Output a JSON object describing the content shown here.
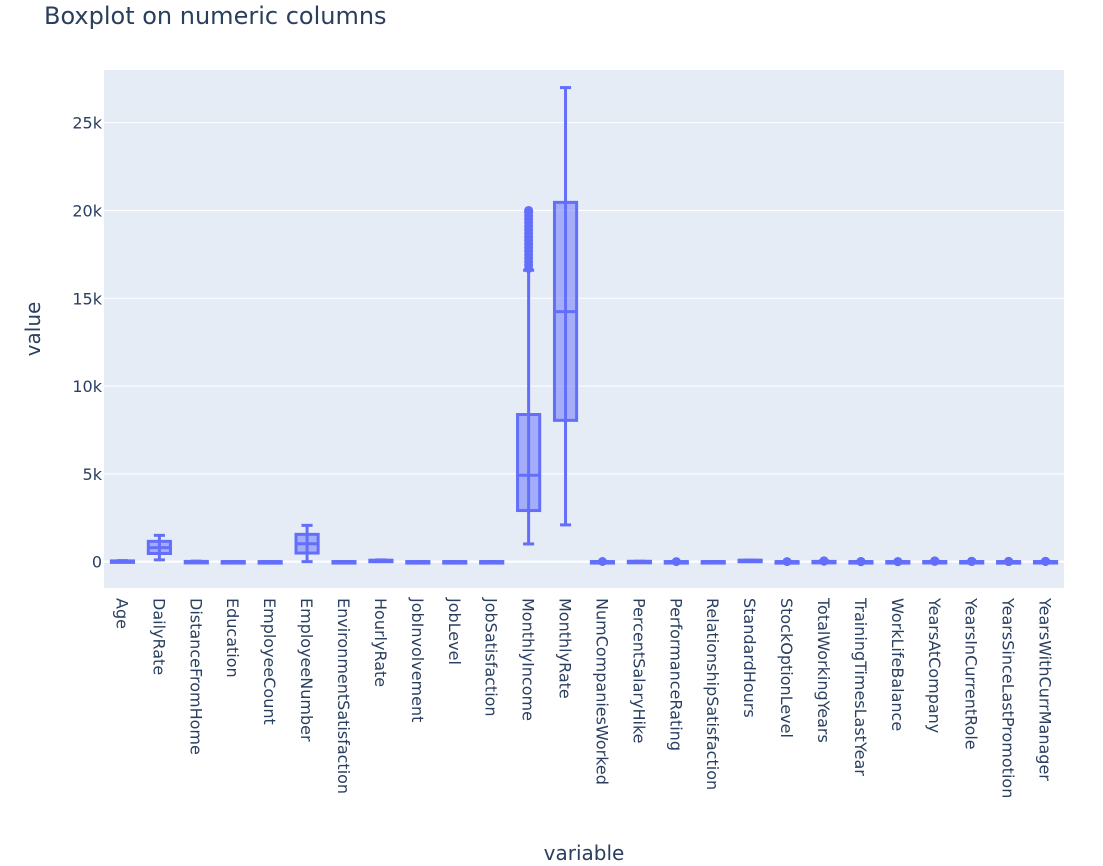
{
  "chart_data": {
    "type": "box",
    "title": "Boxplot on numeric columns",
    "xlabel": "variable",
    "ylabel": "value",
    "ylim": [
      -1500,
      28000
    ],
    "yticks": [
      {
        "value": 0,
        "label": "0"
      },
      {
        "value": 5000,
        "label": "5k"
      },
      {
        "value": 10000,
        "label": "10k"
      },
      {
        "value": 15000,
        "label": "15k"
      },
      {
        "value": 20000,
        "label": "20k"
      },
      {
        "value": 25000,
        "label": "25k"
      }
    ],
    "grid": true,
    "colors": {
      "plot_bg": "#e5ecf6",
      "box_line": "#636efa",
      "box_fill": "rgba(99,110,250,0.5)",
      "grid": "#ffffff",
      "text": "#2a3f5f"
    },
    "categories": [
      "Age",
      "DailyRate",
      "DistanceFromHome",
      "Education",
      "EmployeeCount",
      "EmployeeNumber",
      "EnvironmentSatisfaction",
      "HourlyRate",
      "JobInvolvement",
      "JobLevel",
      "JobSatisfaction",
      "MonthlyIncome",
      "MonthlyRate",
      "NumCompaniesWorked",
      "PercentSalaryHike",
      "PerformanceRating",
      "RelationshipSatisfaction",
      "StandardHours",
      "StockOptionLevel",
      "TotalWorkingYears",
      "TrainingTimesLastYear",
      "WorkLifeBalance",
      "YearsAtCompany",
      "YearsInCurrentRole",
      "YearsSinceLastPromotion",
      "YearsWithCurrManager"
    ],
    "boxes": [
      {
        "min": 18,
        "q1": 30,
        "median": 36,
        "q3": 43,
        "max": 60,
        "outliers": []
      },
      {
        "min": 102,
        "q1": 465,
        "median": 802,
        "q3": 1157,
        "max": 1499,
        "outliers": []
      },
      {
        "min": 1,
        "q1": 2,
        "median": 7,
        "q3": 14,
        "max": 29,
        "outliers": []
      },
      {
        "min": 1,
        "q1": 2,
        "median": 3,
        "q3": 4,
        "max": 5,
        "outliers": []
      },
      {
        "min": 1,
        "q1": 1,
        "median": 1,
        "q3": 1,
        "max": 1,
        "outliers": []
      },
      {
        "min": 1,
        "q1": 491,
        "median": 1020,
        "q3": 1556,
        "max": 2068,
        "outliers": []
      },
      {
        "min": 1,
        "q1": 2,
        "median": 3,
        "q3": 4,
        "max": 4,
        "outliers": []
      },
      {
        "min": 30,
        "q1": 48,
        "median": 66,
        "q3": 84,
        "max": 100,
        "outliers": []
      },
      {
        "min": 1,
        "q1": 2,
        "median": 3,
        "q3": 3,
        "max": 4,
        "outliers": []
      },
      {
        "min": 1,
        "q1": 1,
        "median": 2,
        "q3": 3,
        "max": 5,
        "outliers": []
      },
      {
        "min": 1,
        "q1": 2,
        "median": 3,
        "q3": 4,
        "max": 4,
        "outliers": []
      },
      {
        "min": 1009,
        "q1": 2911,
        "median": 4919,
        "q3": 8379,
        "max": 16595,
        "outliers": [
          16700,
          16900,
          17100,
          17300,
          17500,
          17700,
          17900,
          18100,
          18300,
          18500,
          18700,
          18900,
          19100,
          19300,
          19500,
          19700,
          19900,
          20000
        ]
      },
      {
        "min": 2094,
        "q1": 8047,
        "median": 14236,
        "q3": 20462,
        "max": 26999,
        "outliers": []
      },
      {
        "min": 0,
        "q1": 1,
        "median": 2,
        "q3": 4,
        "max": 8,
        "outliers": [
          9
        ]
      },
      {
        "min": 11,
        "q1": 12,
        "median": 14,
        "q3": 18,
        "max": 25,
        "outliers": []
      },
      {
        "min": 3,
        "q1": 3,
        "median": 3,
        "q3": 3,
        "max": 3,
        "outliers": [
          4
        ]
      },
      {
        "min": 1,
        "q1": 2,
        "median": 3,
        "q3": 4,
        "max": 4,
        "outliers": []
      },
      {
        "min": 80,
        "q1": 80,
        "median": 80,
        "q3": 80,
        "max": 80,
        "outliers": []
      },
      {
        "min": 0,
        "q1": 0,
        "median": 1,
        "q3": 1,
        "max": 2,
        "outliers": [
          3
        ]
      },
      {
        "min": 0,
        "q1": 6,
        "median": 10,
        "q3": 15,
        "max": 28,
        "outliers": [
          30,
          32,
          34,
          36,
          38,
          40
        ]
      },
      {
        "min": 1,
        "q1": 2,
        "median": 3,
        "q3": 3,
        "max": 4,
        "outliers": [
          0,
          5,
          6
        ]
      },
      {
        "min": 2,
        "q1": 2,
        "median": 3,
        "q3": 3,
        "max": 3,
        "outliers": [
          1,
          4
        ]
      },
      {
        "min": 0,
        "q1": 3,
        "median": 5,
        "q3": 9,
        "max": 18,
        "outliers": [
          20,
          22,
          25,
          30,
          33,
          37,
          40
        ]
      },
      {
        "min": 0,
        "q1": 2,
        "median": 3,
        "q3": 7,
        "max": 14,
        "outliers": [
          15,
          16,
          17,
          18
        ]
      },
      {
        "min": 0,
        "q1": 0,
        "median": 1,
        "q3": 3,
        "max": 7,
        "outliers": [
          8,
          10,
          12,
          15
        ]
      },
      {
        "min": 0,
        "q1": 2,
        "median": 3,
        "q3": 7,
        "max": 14,
        "outliers": [
          15,
          16,
          17
        ]
      }
    ]
  }
}
